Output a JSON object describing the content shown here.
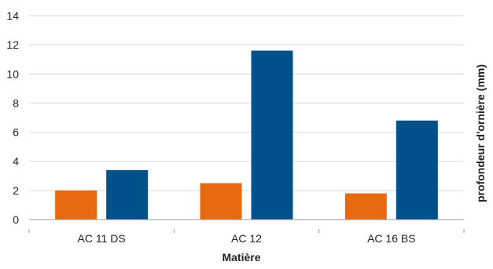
{
  "chart_data": {
    "type": "bar",
    "title": "",
    "xlabel": "Matière",
    "ylabel": "profondeur d'ornière (mm)",
    "categories": [
      "AC 11 DS",
      "AC 12",
      "AC 16 BS"
    ],
    "series": [
      {
        "values": [
          2.0,
          2.5,
          1.8
        ],
        "color": "#E8690F"
      },
      {
        "values": [
          3.4,
          11.6,
          6.8
        ],
        "color": "#00508A"
      }
    ],
    "ylim": [
      0,
      14
    ],
    "yticks": [
      "0",
      "2",
      "4",
      "6",
      "8",
      "10",
      "12",
      "14"
    ],
    "grid": true,
    "legend": "none",
    "gridColor": "#d9d9d9",
    "axisColor": "#9a9a9a"
  }
}
